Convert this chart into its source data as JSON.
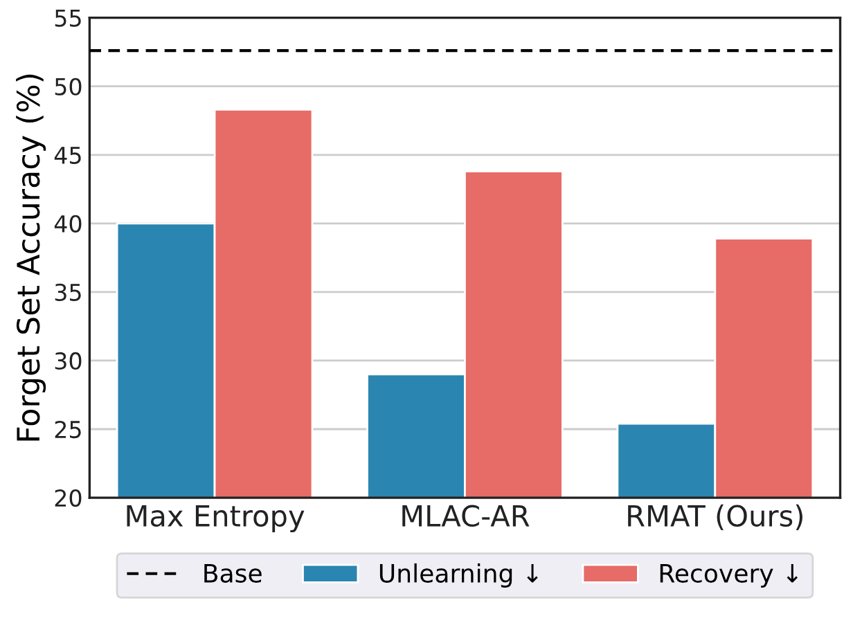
{
  "chart_data": {
    "type": "bar",
    "ylabel": "Forget Set Accuracy (%)",
    "categories": [
      "Max Entropy",
      "MLAC-AR",
      "RMAT (Ours)"
    ],
    "series": [
      {
        "name": "Unlearning ↓",
        "color": "#2a86b0",
        "values": [
          40.0,
          29.0,
          25.4
        ]
      },
      {
        "name": "Recovery ↓",
        "color": "#e76b67",
        "values": [
          48.3,
          43.8,
          38.9
        ]
      }
    ],
    "ylim": [
      20,
      55
    ],
    "yticks": [
      20,
      25,
      30,
      35,
      40,
      45,
      50,
      55
    ],
    "ref_lines": [
      {
        "axis": "y",
        "value": 52.6,
        "label": "Base",
        "color": "#000000",
        "line_style": "dashed"
      }
    ],
    "grid": "y",
    "legend": "bottom"
  }
}
